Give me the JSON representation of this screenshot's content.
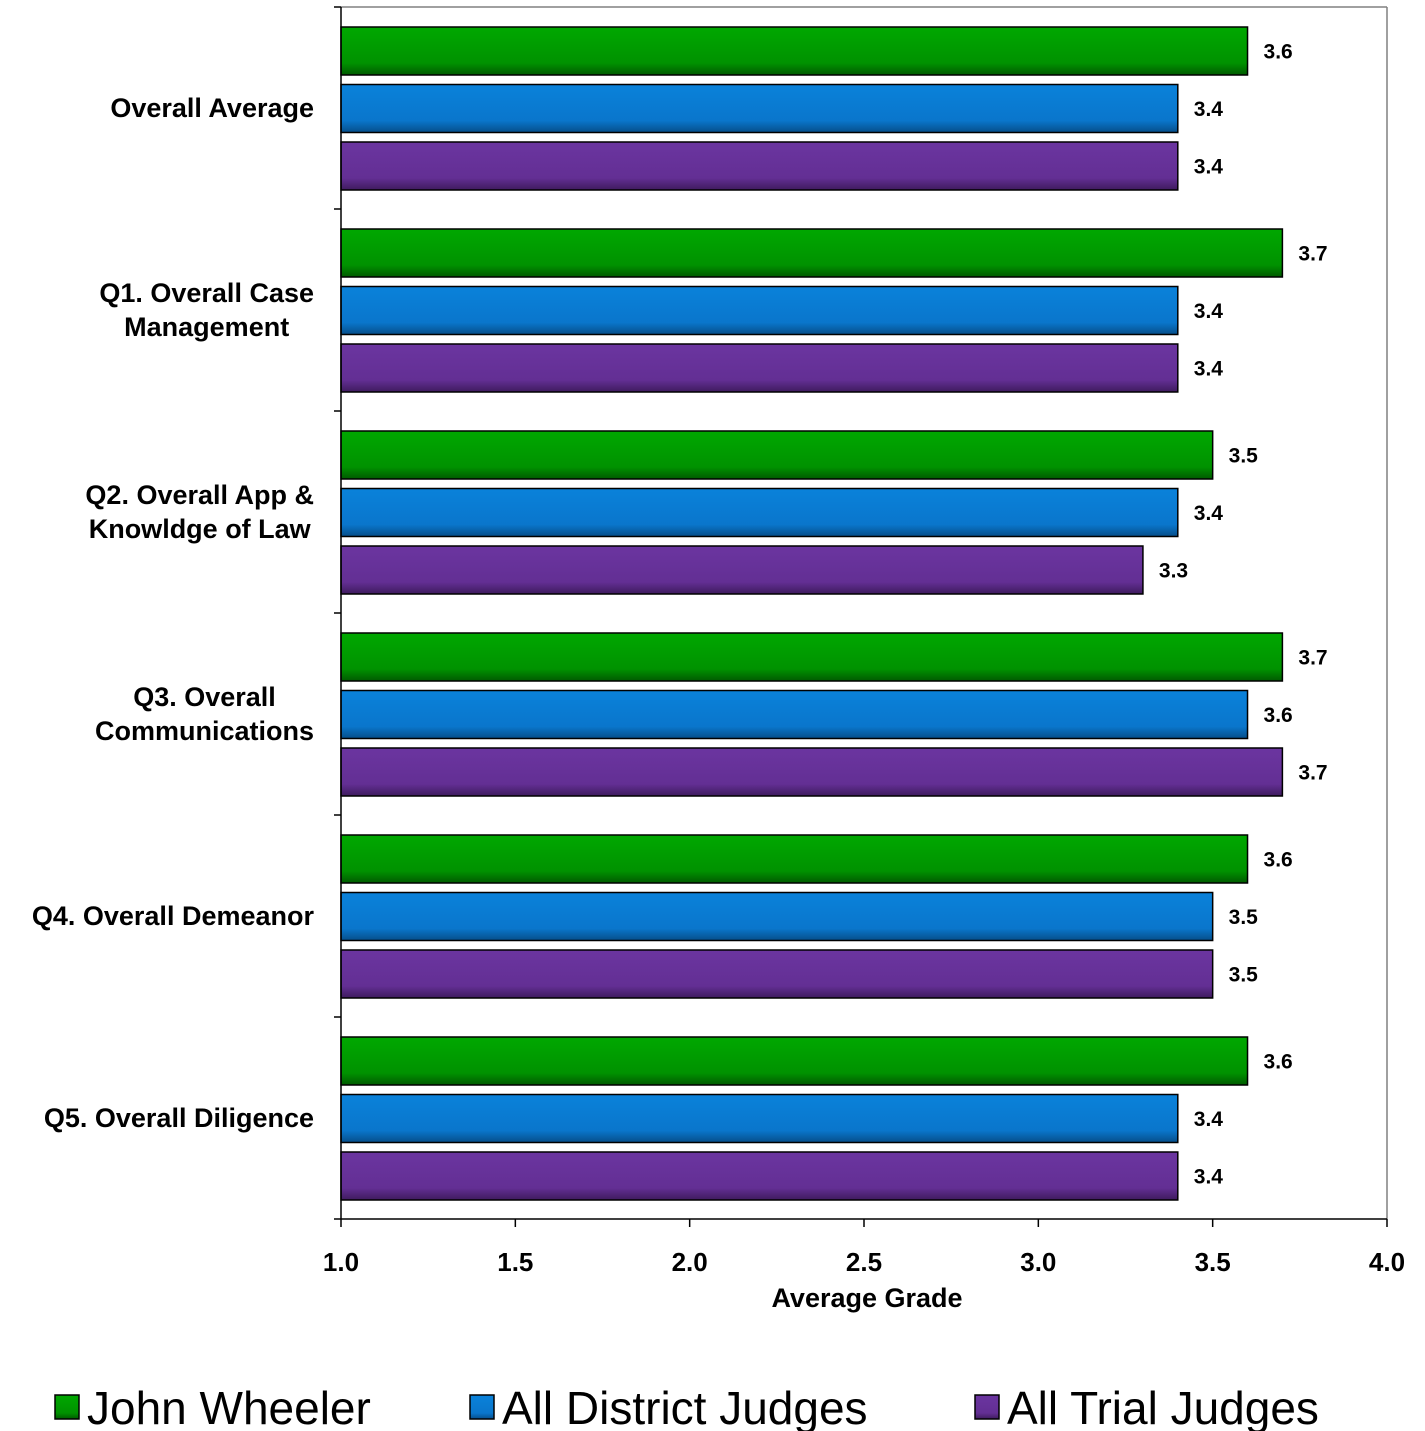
{
  "chart_data": {
    "type": "bar",
    "orientation": "horizontal",
    "categories": [
      [
        "Overall Average"
      ],
      [
        "Q1. Overall Case",
        "Management"
      ],
      [
        "Q2. Overall App &",
        "Knowldge of Law"
      ],
      [
        "Q3. Overall",
        "Communications"
      ],
      [
        "Q4. Overall Demeanor"
      ],
      [
        "Q5. Overall Diligence"
      ]
    ],
    "series": [
      {
        "name": "John Wheeler",
        "color": "#009900",
        "values": [
          3.6,
          3.7,
          3.5,
          3.7,
          3.6,
          3.6
        ],
        "labels": [
          "3.6",
          "3.7",
          "3.5",
          "3.7",
          "3.6",
          "3.6"
        ]
      },
      {
        "name": "All District Judges",
        "color": "#0a7ad0",
        "values": [
          3.4,
          3.4,
          3.4,
          3.6,
          3.5,
          3.4
        ],
        "labels": [
          "3.4",
          "3.4",
          "3.4",
          "3.6",
          "3.5",
          "3.4"
        ]
      },
      {
        "name": "All Trial Judges",
        "color": "#663399",
        "values": [
          3.4,
          3.4,
          3.3,
          3.7,
          3.5,
          3.4
        ],
        "labels": [
          "3.4",
          "3.4",
          "3.3",
          "3.7",
          "3.5",
          "3.4"
        ]
      }
    ],
    "xlabel": "Average Grade",
    "xlim": [
      1.0,
      4.0
    ],
    "xticks": [
      "1.0",
      "1.5",
      "2.0",
      "2.5",
      "3.0",
      "3.5",
      "4.0"
    ],
    "grid": false,
    "legend_position": "bottom"
  }
}
